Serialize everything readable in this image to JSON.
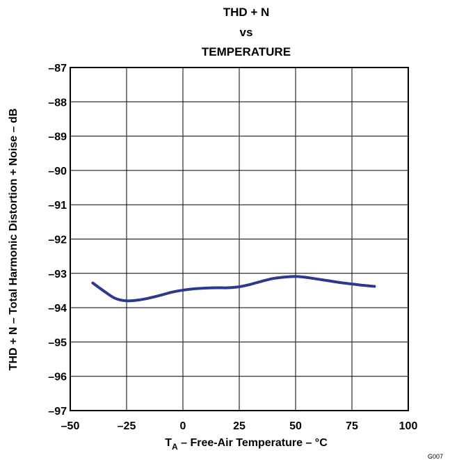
{
  "chart_data": {
    "type": "line",
    "title_lines": [
      "THD + N",
      "vs",
      "TEMPERATURE"
    ],
    "xlabel": {
      "base": "T",
      "subscript": "A",
      "rest": " – Free-Air Temperature – °C"
    },
    "ylabel": "THD + N – Total Harmonic Distortion + Noise – dB",
    "xlim": [
      -50,
      100
    ],
    "ylim": [
      -97,
      -87
    ],
    "x_ticks": [
      -50,
      -25,
      0,
      25,
      50,
      75,
      100
    ],
    "x_tick_labels": [
      "–50",
      "–25",
      "0",
      "25",
      "50",
      "75",
      "100"
    ],
    "y_ticks": [
      -87,
      -88,
      -89,
      -90,
      -91,
      -92,
      -93,
      -94,
      -95,
      -96,
      -97
    ],
    "y_tick_labels": [
      "–87",
      "–88",
      "–89",
      "–90",
      "–91",
      "–92",
      "–93",
      "–94",
      "–95",
      "–96",
      "–97"
    ],
    "grid": true,
    "series": [
      {
        "color": "#2b3a8f",
        "x": [
          -40,
          -35,
          -30,
          -25,
          -20,
          -15,
          -10,
          -5,
          0,
          5,
          10,
          15,
          20,
          25,
          30,
          35,
          40,
          45,
          50,
          55,
          60,
          65,
          70,
          75,
          80,
          85
        ],
        "y": [
          -93.28,
          -93.52,
          -93.73,
          -93.8,
          -93.78,
          -93.72,
          -93.64,
          -93.55,
          -93.49,
          -93.45,
          -93.43,
          -93.42,
          -93.42,
          -93.39,
          -93.32,
          -93.23,
          -93.15,
          -93.11,
          -93.09,
          -93.12,
          -93.17,
          -93.22,
          -93.27,
          -93.31,
          -93.35,
          -93.38
        ]
      }
    ],
    "figure_code": "G007"
  }
}
